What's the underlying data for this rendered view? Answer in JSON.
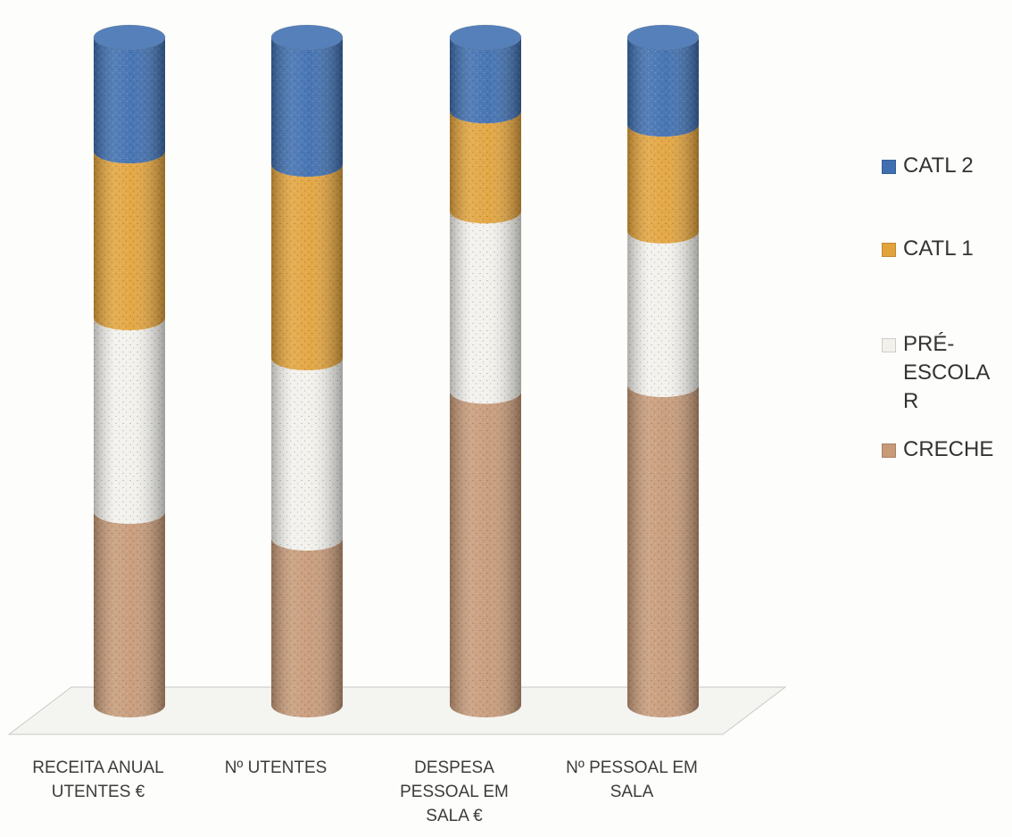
{
  "chart_data": {
    "type": "bar",
    "stacked": "percent",
    "style": "3d-cylinder",
    "categories": [
      "RECEITA ANUAL UTENTES €",
      "Nº UTENTES",
      "DESPESA PESSOAL EM SALA €",
      "Nº PESSOAL EM SALA"
    ],
    "series": [
      {
        "name": "CRECHE",
        "values": [
          29,
          25,
          47,
          48
        ],
        "color": "#c79a78"
      },
      {
        "name": "PRÉ-ESCOLAR",
        "values": [
          29,
          27,
          27,
          23
        ],
        "color": "#f2f1ec"
      },
      {
        "name": "CATL 1",
        "values": [
          25,
          29,
          15,
          16
        ],
        "color": "#e2a33c"
      },
      {
        "name": "CATL 2",
        "values": [
          17,
          19,
          11,
          13
        ],
        "color": "#3f6fb0"
      }
    ],
    "legend_position": "right",
    "grid": false
  }
}
